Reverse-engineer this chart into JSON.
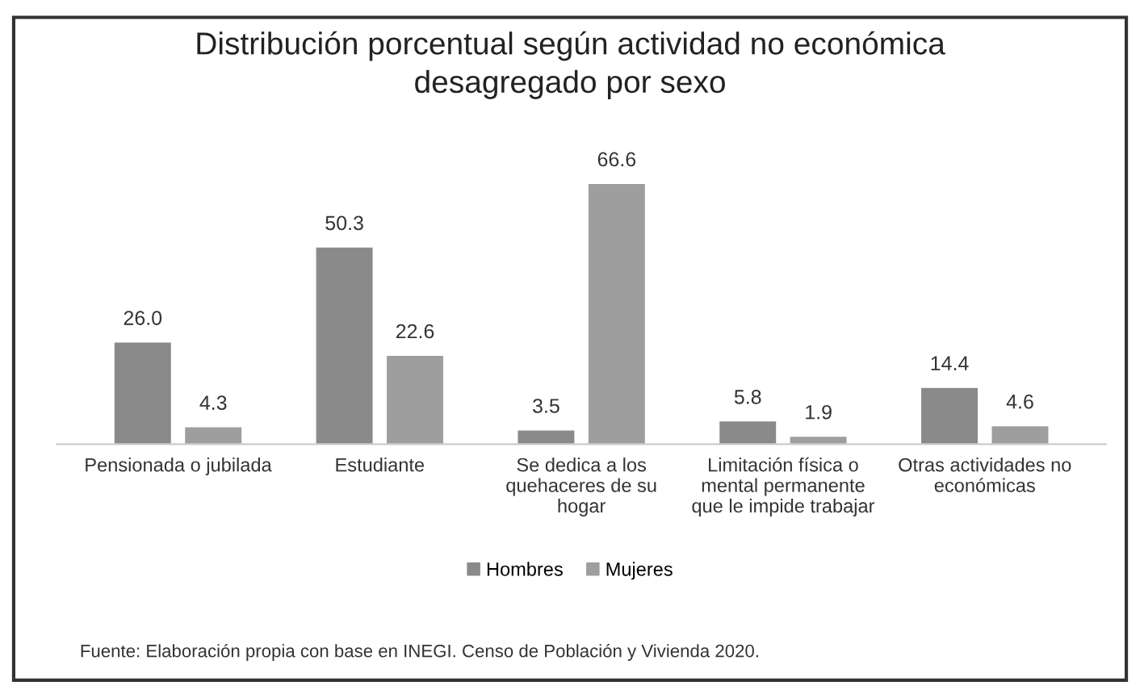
{
  "chart_data": {
    "type": "bar",
    "title": "Distribución porcentual según actividad no económica\ndesagregado por sexo",
    "categories": [
      "Pensionada o jubilada",
      "Estudiante",
      "Se dedica a los\nquehaceres de su\nhogar",
      "Limitación física o\nmental permanente\nque le impide trabajar",
      "Otras actividades no\neconómicas"
    ],
    "series": [
      {
        "name": "Hombres",
        "color": "#8a8a8a",
        "values": [
          26.0,
          50.3,
          3.5,
          5.8,
          14.4
        ],
        "value_labels": [
          "26.0",
          "50.3",
          "3.5",
          "5.8",
          "14.4"
        ]
      },
      {
        "name": "Mujeres",
        "color": "#9e9e9e",
        "values": [
          4.3,
          22.6,
          66.6,
          1.9,
          4.6
        ],
        "value_labels": [
          "4.3",
          "22.6",
          "66.6",
          "1.9",
          "4.6"
        ]
      }
    ],
    "legend": "bottom",
    "annotations": [
      "Fuente: Elaboración propia con base en INEGI. Censo de Población y Vivienda 2020."
    ]
  }
}
